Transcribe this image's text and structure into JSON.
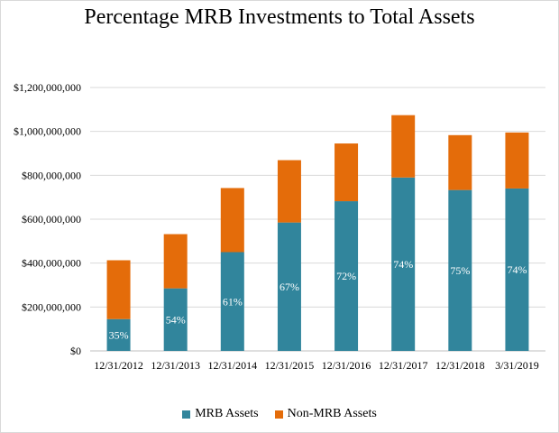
{
  "chart_data": {
    "type": "bar",
    "stacked": true,
    "title": "Percentage MRB Investments to Total Assets",
    "categories": [
      "12/31/2012",
      "12/31/2013",
      "12/31/2014",
      "12/31/2015",
      "12/31/2016",
      "12/31/2017",
      "12/31/2018",
      "3/31/2019"
    ],
    "series": [
      {
        "name": "MRB Assets",
        "color": "#31859c",
        "values": [
          145000000,
          285000000,
          450000000,
          585000000,
          682000000,
          790000000,
          733000000,
          740000000
        ]
      },
      {
        "name": "Non-MRB Assets",
        "color": "#e46c0a",
        "values": [
          268000000,
          247000000,
          292000000,
          284000000,
          263000000,
          284000000,
          250000000,
          255000000
        ]
      }
    ],
    "data_labels": [
      "35%",
      "54%",
      "61%",
      "67%",
      "72%",
      "74%",
      "75%",
      "74%"
    ],
    "ylim": [
      0,
      1200000000
    ],
    "yticks": [
      0,
      200000000,
      400000000,
      600000000,
      800000000,
      1000000000,
      1200000000
    ],
    "ytick_labels": [
      "$0",
      "$200,000,000",
      "$400,000,000",
      "$600,000,000",
      "$800,000,000",
      "$1,000,000,000",
      "$1,200,000,000"
    ],
    "grid": true,
    "legend": "bottom"
  }
}
